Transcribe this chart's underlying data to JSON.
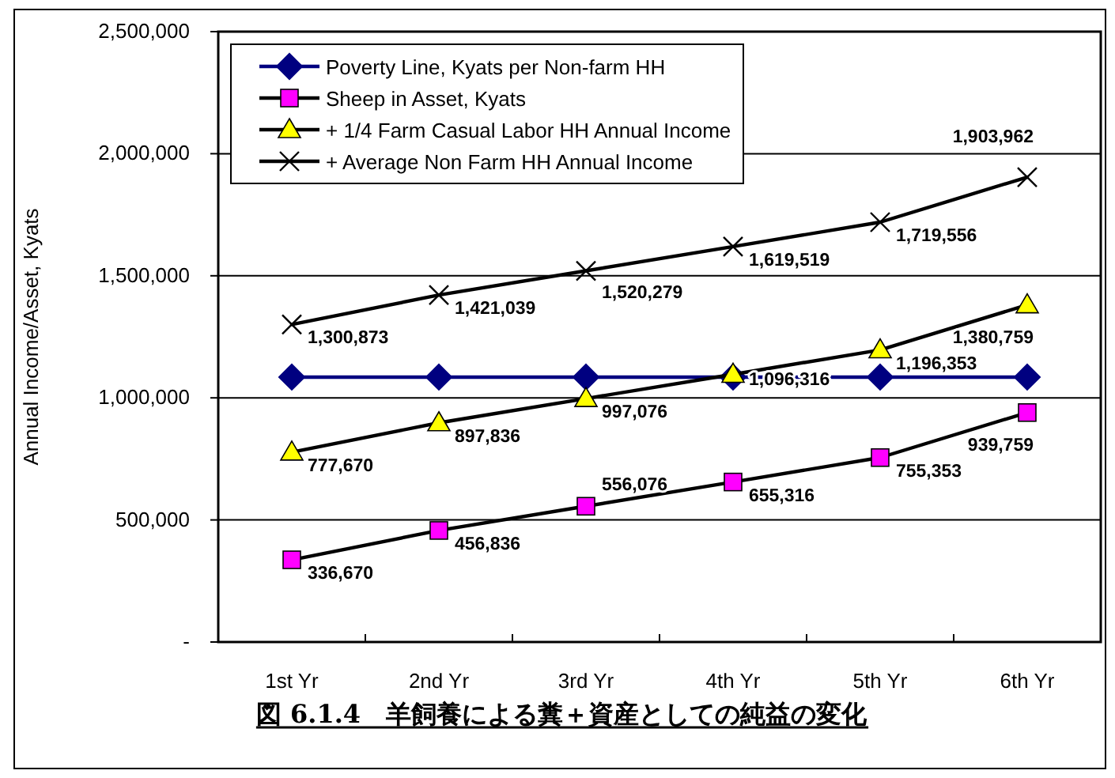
{
  "chart_data": {
    "type": "line",
    "title": "図 6.1.4　羊飼養による糞＋資産としての純益の変化",
    "ylabel": "Annual Income/Asset, Kyats",
    "categories": [
      "1st Yr",
      "2nd Yr",
      "3rd Yr",
      "4th Yr",
      "5th Yr",
      "6th Yr"
    ],
    "ylim": [
      0,
      2500000
    ],
    "yticks": [
      {
        "value": 0,
        "label": "-"
      },
      {
        "value": 500000,
        "label": "500,000"
      },
      {
        "value": 1000000,
        "label": "1,000,000"
      },
      {
        "value": 1500000,
        "label": "1,500,000"
      },
      {
        "value": 2000000,
        "label": "2,000,000"
      },
      {
        "value": 2500000,
        "label": "2,500,000"
      }
    ],
    "grid": "y",
    "legend": "top left",
    "series": [
      {
        "name": "Poverty Line, Kyats per Non-farm HH",
        "color": "#000080",
        "marker": "diamond",
        "values": [
          1085000,
          1085000,
          1085000,
          1085000,
          1085000,
          1085000
        ]
      },
      {
        "name": "Sheep in Asset, Kyats",
        "color": "#000000",
        "colors": [
          "#ff00ff",
          "#ff00ff",
          "#ff00ff",
          "#ff00ff",
          "#ff00ff",
          "#ff00ff"
        ],
        "marker": "square",
        "values": [
          336670,
          456836,
          556076,
          655316,
          755353,
          939759
        ],
        "value_labels": [
          "336,670",
          "456,836",
          "556,076",
          "655,316",
          "755,353",
          "939,759"
        ]
      },
      {
        "name": "+ 1/4 Farm Casual Labor HH Annual Income",
        "color": "#000000",
        "colors": [
          "#ffff00",
          "#ffff00",
          "#ffff00",
          "#ffff00",
          "#ffff00",
          "#ffff00"
        ],
        "marker": "triangle",
        "values": [
          777670,
          897836,
          997076,
          1096316,
          1196353,
          1380759
        ],
        "value_labels": [
          "777,670",
          "897,836",
          "997,076",
          "1,096,316",
          "1,196,353",
          "1,380,759"
        ]
      },
      {
        "name": "+ Average Non Farm HH Annual Income",
        "color": "#000000",
        "marker": "cross",
        "values": [
          1300873,
          1421039,
          1520279,
          1619519,
          1719556,
          1903962
        ],
        "value_labels": [
          "1,300,873",
          "1,421,039",
          "1,520,279",
          "1,619,519",
          "1,719,556",
          "1,903,962"
        ]
      }
    ]
  }
}
